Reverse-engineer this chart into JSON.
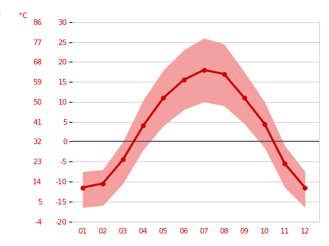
{
  "months": [
    1,
    2,
    3,
    4,
    5,
    6,
    7,
    8,
    9,
    10,
    11,
    12
  ],
  "month_labels": [
    "01",
    "02",
    "03",
    "04",
    "05",
    "06",
    "07",
    "08",
    "09",
    "10",
    "11",
    "12"
  ],
  "mean_temp_c": [
    -11.5,
    -10.5,
    -4.5,
    4.0,
    11.0,
    15.5,
    18.0,
    17.0,
    11.0,
    4.5,
    -5.5,
    -11.5
  ],
  "high_temp_c": [
    -7.5,
    -7.0,
    0.0,
    10.5,
    18.0,
    23.0,
    26.0,
    24.5,
    17.5,
    10.0,
    -1.0,
    -7.5
  ],
  "low_temp_c": [
    -16.5,
    -16.0,
    -10.5,
    -2.0,
    4.0,
    8.0,
    10.0,
    9.0,
    4.5,
    -1.5,
    -11.5,
    -16.5
  ],
  "ylim_c": [
    -20,
    30
  ],
  "yticks_c": [
    -20,
    -15,
    -10,
    -5,
    0,
    5,
    10,
    15,
    20,
    25,
    30
  ],
  "yticks_f": [
    -4,
    5,
    14,
    23,
    32,
    41,
    50,
    59,
    68,
    77,
    86
  ],
  "line_color": "#cc0000",
  "band_color": "#f5a0a0",
  "zero_line_color": "#555555",
  "grid_color": "#cccccc",
  "tick_color": "#cc0000",
  "background_color": "#ffffff",
  "label_c": "°C",
  "marker": "o",
  "marker_size": 4,
  "figwidth": 4.74,
  "figheight": 3.55,
  "dpi": 100
}
